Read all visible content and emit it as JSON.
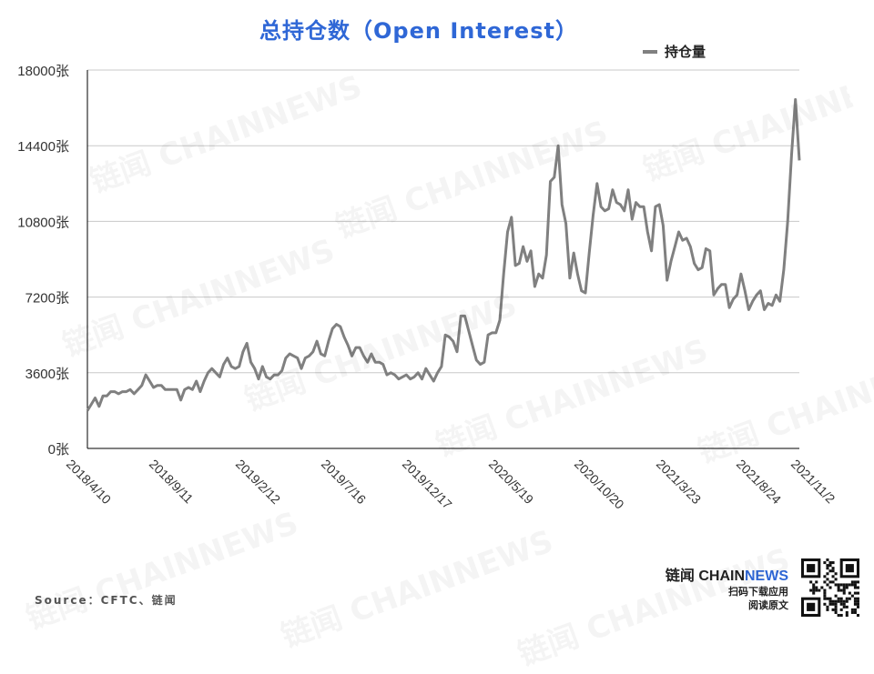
{
  "chart_data": {
    "type": "line",
    "title": "总持仓数（Open Interest）",
    "xlabel": "",
    "ylabel": "",
    "ylim": [
      0,
      18000
    ],
    "y_ticks": [
      "0张",
      "3600张",
      "7200张",
      "10800张",
      "14400张",
      "18000张"
    ],
    "y_tick_values": [
      0,
      3600,
      7200,
      10800,
      14400,
      18000
    ],
    "x_tick_labels": [
      "2018/4/10",
      "2018/9/11",
      "2019/2/12",
      "2019/7/16",
      "2019/12/17",
      "2020/5/19",
      "2020/10/20",
      "2021/3/23",
      "2021/8/24",
      "2021/11/2"
    ],
    "grid": true,
    "legend_position": "top-right",
    "series": [
      {
        "name": "持仓量",
        "color": "#808080",
        "values": [
          1800,
          2100,
          2400,
          2000,
          2500,
          2500,
          2700,
          2700,
          2600,
          2700,
          2700,
          2800,
          2600,
          2800,
          3000,
          3500,
          3200,
          2900,
          3000,
          3000,
          2800,
          2800,
          2800,
          2800,
          2300,
          2800,
          2900,
          2800,
          3200,
          2700,
          3200,
          3600,
          3800,
          3600,
          3400,
          4000,
          4300,
          3900,
          3800,
          3900,
          4600,
          5000,
          4100,
          3800,
          3300,
          3900,
          3400,
          3300,
          3500,
          3500,
          3700,
          4300,
          4500,
          4400,
          4300,
          3800,
          4300,
          4400,
          4600,
          5100,
          4500,
          4400,
          5100,
          5700,
          5900,
          5800,
          5300,
          4900,
          4400,
          4800,
          4800,
          4400,
          4100,
          4500,
          4100,
          4100,
          4000,
          3500,
          3600,
          3500,
          3300,
          3400,
          3500,
          3300,
          3400,
          3600,
          3300,
          3800,
          3500,
          3200,
          3600,
          3900,
          5400,
          5300,
          5100,
          4600,
          6300,
          6300,
          5600,
          4900,
          4200,
          4000,
          4100,
          5400,
          5500,
          5500,
          6100,
          8300,
          10300,
          11000,
          8700,
          8800,
          9600,
          8900,
          9400,
          7700,
          8300,
          8100,
          9200,
          12700,
          12900,
          14400,
          11600,
          10700,
          8100,
          9300,
          8300,
          7500,
          7400,
          9300,
          11100,
          12600,
          11500,
          11300,
          11400,
          12300,
          11700,
          11600,
          11300,
          12300,
          10900,
          11700,
          11500,
          11500,
          10300,
          9400,
          11500,
          11600,
          10600,
          8000,
          8900,
          9600,
          10300,
          9900,
          10000,
          9600,
          8800,
          8500,
          8600,
          9500,
          9400,
          7300,
          7600,
          7800,
          7800,
          6700,
          7100,
          7300,
          8300,
          7500,
          6600,
          7000,
          7300,
          7500,
          6600,
          6900,
          6800,
          7300,
          7000,
          8500,
          10800,
          14000,
          16600,
          13700
        ]
      }
    ]
  },
  "legend": {
    "label": "持仓量"
  },
  "footer": {
    "source": "Source：CFTC、链闻",
    "brand_cn": "链闻",
    "brand_en1": "CHAIN",
    "brand_en2": "NEWS",
    "brand_line1": "扫码下载应用",
    "brand_line2": "阅读原文"
  },
  "watermark_text": "链闻 CHAINNEWS"
}
